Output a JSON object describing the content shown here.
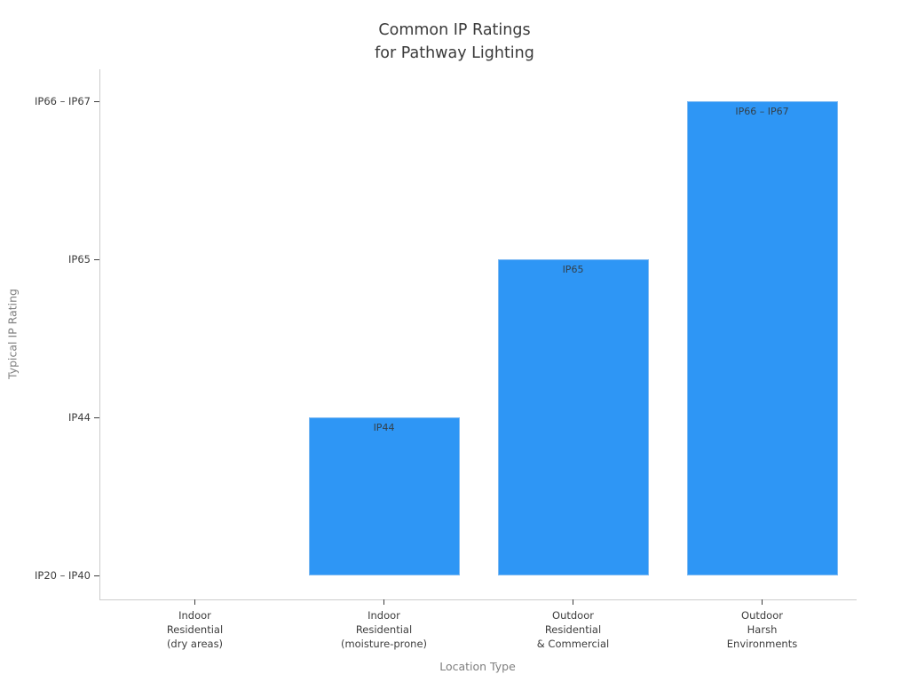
{
  "chart_data": {
    "type": "bar",
    "title": "Common IP Ratings\nfor Pathway Lighting",
    "xlabel": "Location Type",
    "ylabel": "Typical IP Rating",
    "categories": [
      "Indoor\nResidential\n(dry areas)",
      "Indoor\nResidential\n(moisture-prone)",
      "Outdoor\nResidential\n& Commercial",
      "Outdoor\nHarsh\nEnvironments"
    ],
    "ytick_labels": [
      "IP20 – IP40",
      "IP44",
      "IP65",
      "IP66 – IP67"
    ],
    "values": [
      0,
      1,
      2,
      3
    ],
    "bar_labels": [
      "",
      "IP44",
      "IP65",
      "IP66 – IP67"
    ],
    "ylim": [
      -0.15,
      3.2
    ],
    "grid": "off",
    "legend": "none",
    "colors": {
      "bar_fill": "#2E96F5",
      "bar_edge": "#7db9f2",
      "spine": "#cccccc",
      "tick": "#3d3d3d",
      "title_text": "#3a3a3a",
      "axis_label_text": "#7f7f7f",
      "bar_label_text": "#33404a"
    }
  }
}
